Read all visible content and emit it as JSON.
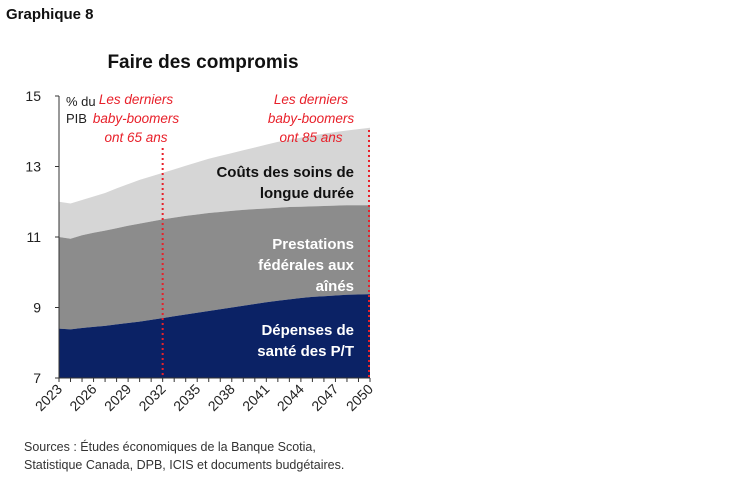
{
  "figure_label": "Graphique 8",
  "sources": [
    "Sources : Études économiques de la Banque Scotia,",
    "Statistique Canada, DPB, ICIS et documents budgétaires."
  ],
  "colors": {
    "navy": "#0b2265",
    "mid_grey": "#8c8c8c",
    "light_grey": "#d6d6d6",
    "red": "#e8202a"
  },
  "chart_data": {
    "type": "area",
    "stacked": true,
    "title": "Faire des compromis",
    "ylabel_lines": [
      "% du",
      "PIB"
    ],
    "ylim": [
      7,
      15
    ],
    "yticks": [
      7,
      9,
      11,
      13,
      15
    ],
    "xlim": [
      2023,
      2050
    ],
    "xticks": [
      "2023",
      "2026",
      "2029",
      "2032",
      "2035",
      "2038",
      "2041",
      "2044",
      "2047",
      "2050"
    ],
    "x": [
      2023,
      2024,
      2025,
      2026,
      2027,
      2028,
      2029,
      2030,
      2031,
      2032,
      2033,
      2034,
      2035,
      2036,
      2037,
      2038,
      2039,
      2040,
      2041,
      2042,
      2043,
      2044,
      2045,
      2046,
      2047,
      2048,
      2049,
      2050
    ],
    "series": [
      {
        "name": "Dépenses de santé des P/T",
        "label_lines": [
          "Dépenses de",
          "santé des P/T"
        ],
        "cumulative": [
          8.4,
          8.38,
          8.42,
          8.45,
          8.48,
          8.52,
          8.56,
          8.6,
          8.65,
          8.7,
          8.75,
          8.8,
          8.85,
          8.9,
          8.95,
          9.0,
          9.05,
          9.1,
          9.15,
          9.19,
          9.23,
          9.27,
          9.3,
          9.32,
          9.34,
          9.36,
          9.37,
          9.38
        ],
        "color": "#0b2265",
        "label_color": "#ffffff"
      },
      {
        "name": "Prestations fédérales aux aînés",
        "label_lines": [
          "Prestations",
          "fédérales aux",
          "aînés"
        ],
        "cumulative": [
          11.0,
          10.95,
          11.05,
          11.12,
          11.18,
          11.25,
          11.32,
          11.38,
          11.44,
          11.5,
          11.55,
          11.6,
          11.64,
          11.68,
          11.71,
          11.74,
          11.77,
          11.79,
          11.81,
          11.83,
          11.85,
          11.86,
          11.87,
          11.88,
          11.89,
          11.9,
          11.9,
          11.9
        ],
        "color": "#8c8c8c",
        "label_color": "#ffffff"
      },
      {
        "name": "Coûts des soins de longue durée",
        "label_lines": [
          "Coûts des soins de",
          "longue durée"
        ],
        "cumulative": [
          12.0,
          11.95,
          12.05,
          12.15,
          12.25,
          12.38,
          12.5,
          12.62,
          12.72,
          12.82,
          12.92,
          13.02,
          13.12,
          13.22,
          13.3,
          13.38,
          13.46,
          13.54,
          13.62,
          13.7,
          13.76,
          13.82,
          13.88,
          13.93,
          13.98,
          14.02,
          14.06,
          14.1
        ],
        "color": "#d6d6d6",
        "label_color": "#111111"
      }
    ],
    "annotations": [
      {
        "x": 2032,
        "label_lines": [
          "Les derniers",
          "baby-boomers",
          "ont 65 ans"
        ]
      },
      {
        "x": 2050,
        "label_lines": [
          "Les derniers",
          "baby-boomers",
          "ont 85 ans"
        ]
      }
    ],
    "grid": false,
    "legend": "none"
  }
}
